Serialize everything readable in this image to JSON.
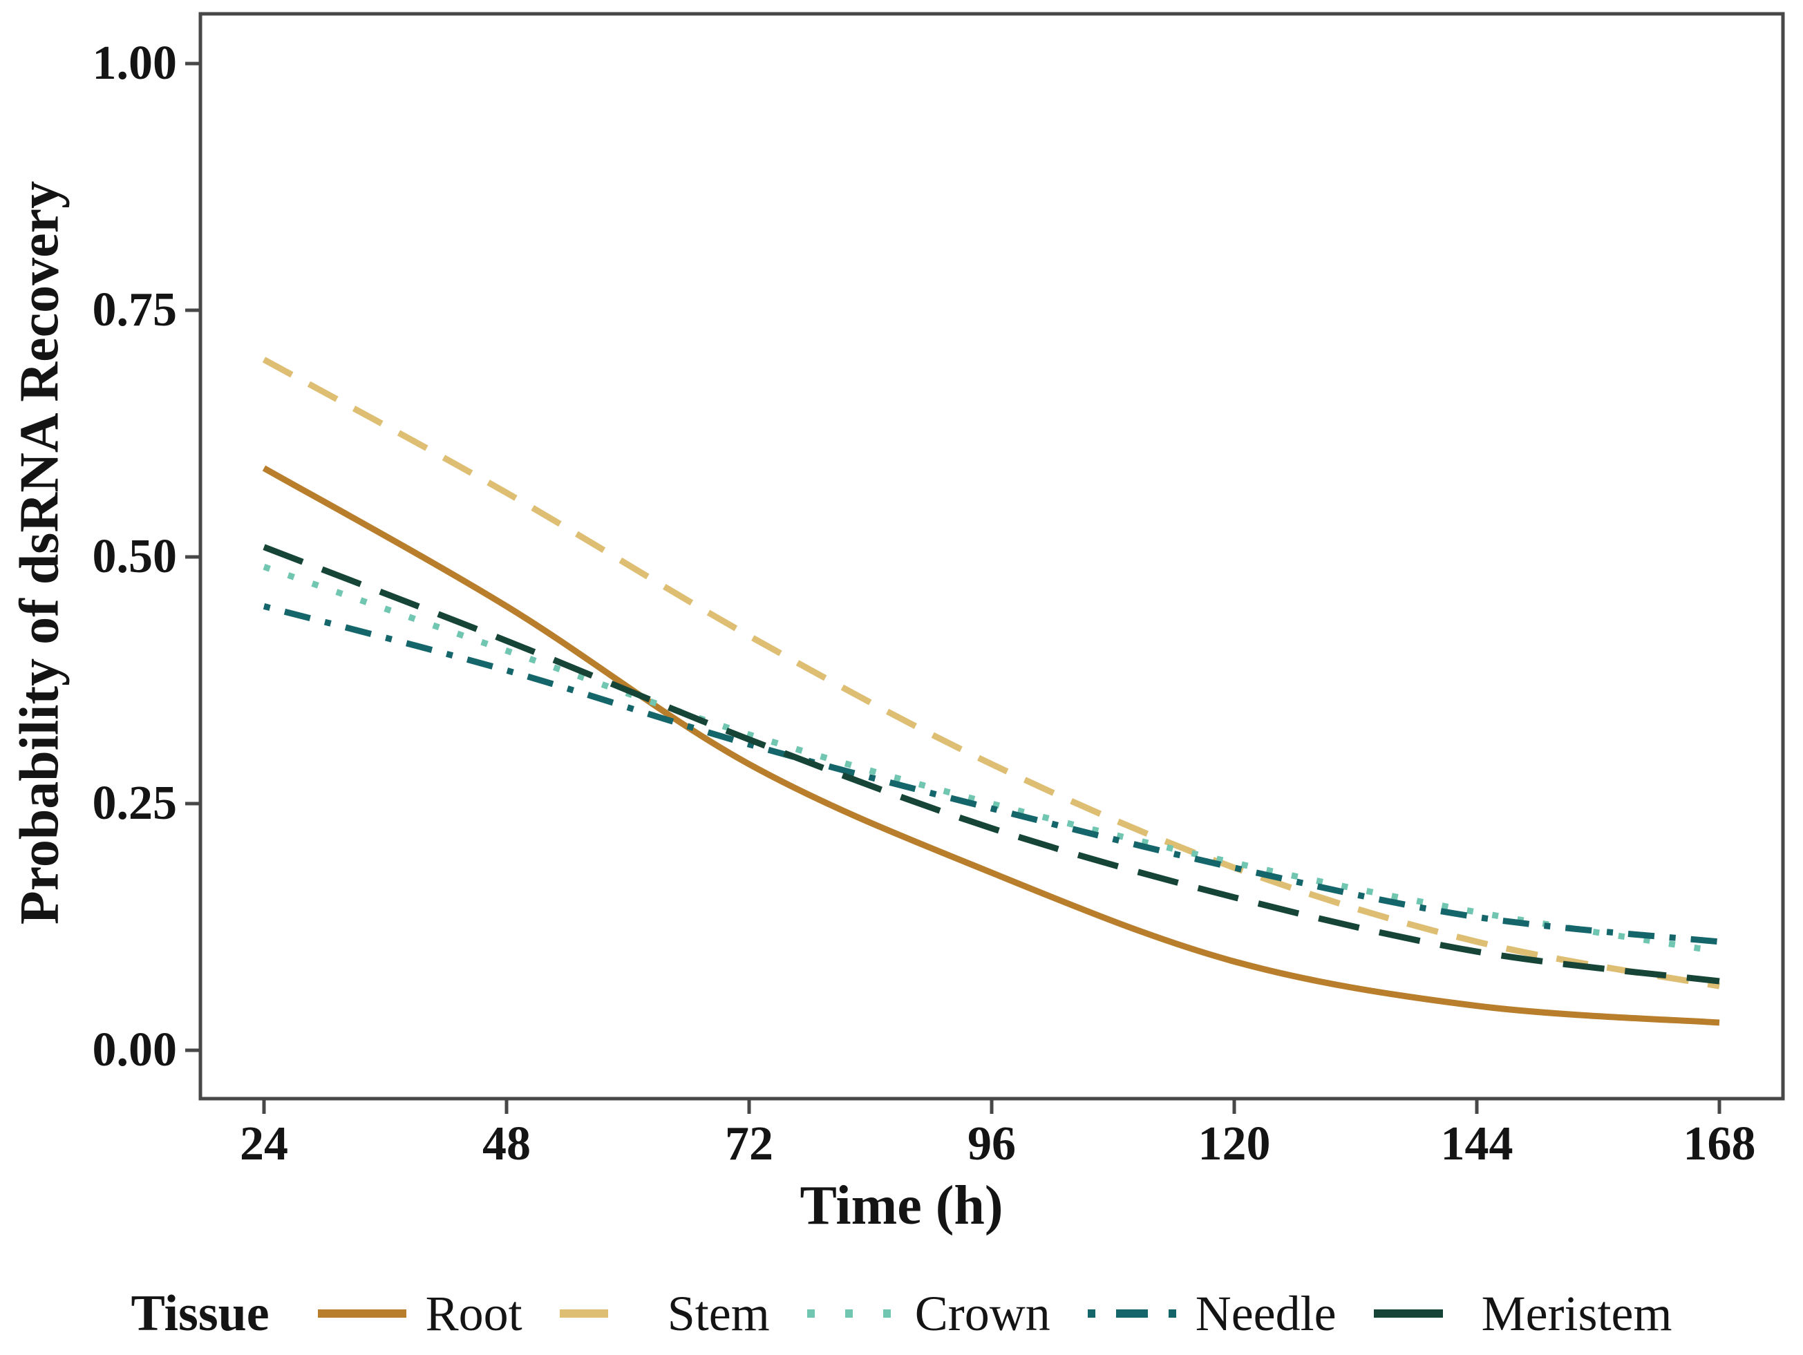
{
  "figure": {
    "x_axis_title": "Time (h)",
    "y_axis_title": "Probability of dsRNA Recovery",
    "legend_title": "Tissue"
  },
  "chart_data": {
    "type": "line",
    "title": "",
    "xlabel": "Time (h)",
    "ylabel": "Probability of dsRNA Recovery",
    "x": [
      24,
      48,
      72,
      96,
      120,
      144,
      168
    ],
    "x_tick_labels": [
      "24",
      "48",
      "72",
      "96",
      "120",
      "144",
      "168"
    ],
    "y_tick_values": [
      0.0,
      0.25,
      0.5,
      0.75,
      1.0
    ],
    "y_tick_labels": [
      "0.00",
      "0.25",
      "0.50",
      "0.75",
      "1.00"
    ],
    "xlim": [
      24,
      168
    ],
    "ylim": [
      0.0,
      1.0
    ],
    "grid": "off",
    "legend_position": "bottom",
    "legend_title": "Tissue",
    "series": [
      {
        "name": "Root",
        "color": "#B87E2B",
        "linestyle": "solid",
        "values": [
          0.59,
          0.45,
          0.29,
          0.18,
          0.09,
          0.045,
          0.028
        ]
      },
      {
        "name": "Stem",
        "color": "#DDBE72",
        "linestyle": "dashed",
        "values": [
          0.7,
          0.565,
          0.42,
          0.29,
          0.185,
          0.11,
          0.065
        ]
      },
      {
        "name": "Crown",
        "color": "#70C6B1",
        "linestyle": "dotted",
        "values": [
          0.49,
          0.405,
          0.32,
          0.25,
          0.19,
          0.14,
          0.1
        ]
      },
      {
        "name": "Needle",
        "color": "#14666A",
        "linestyle": "dashdot",
        "values": [
          0.45,
          0.385,
          0.31,
          0.245,
          0.185,
          0.135,
          0.11
        ]
      },
      {
        "name": "Meristem",
        "color": "#164538",
        "linestyle": "longdash",
        "values": [
          0.51,
          0.415,
          0.315,
          0.225,
          0.155,
          0.1,
          0.07
        ]
      }
    ]
  }
}
